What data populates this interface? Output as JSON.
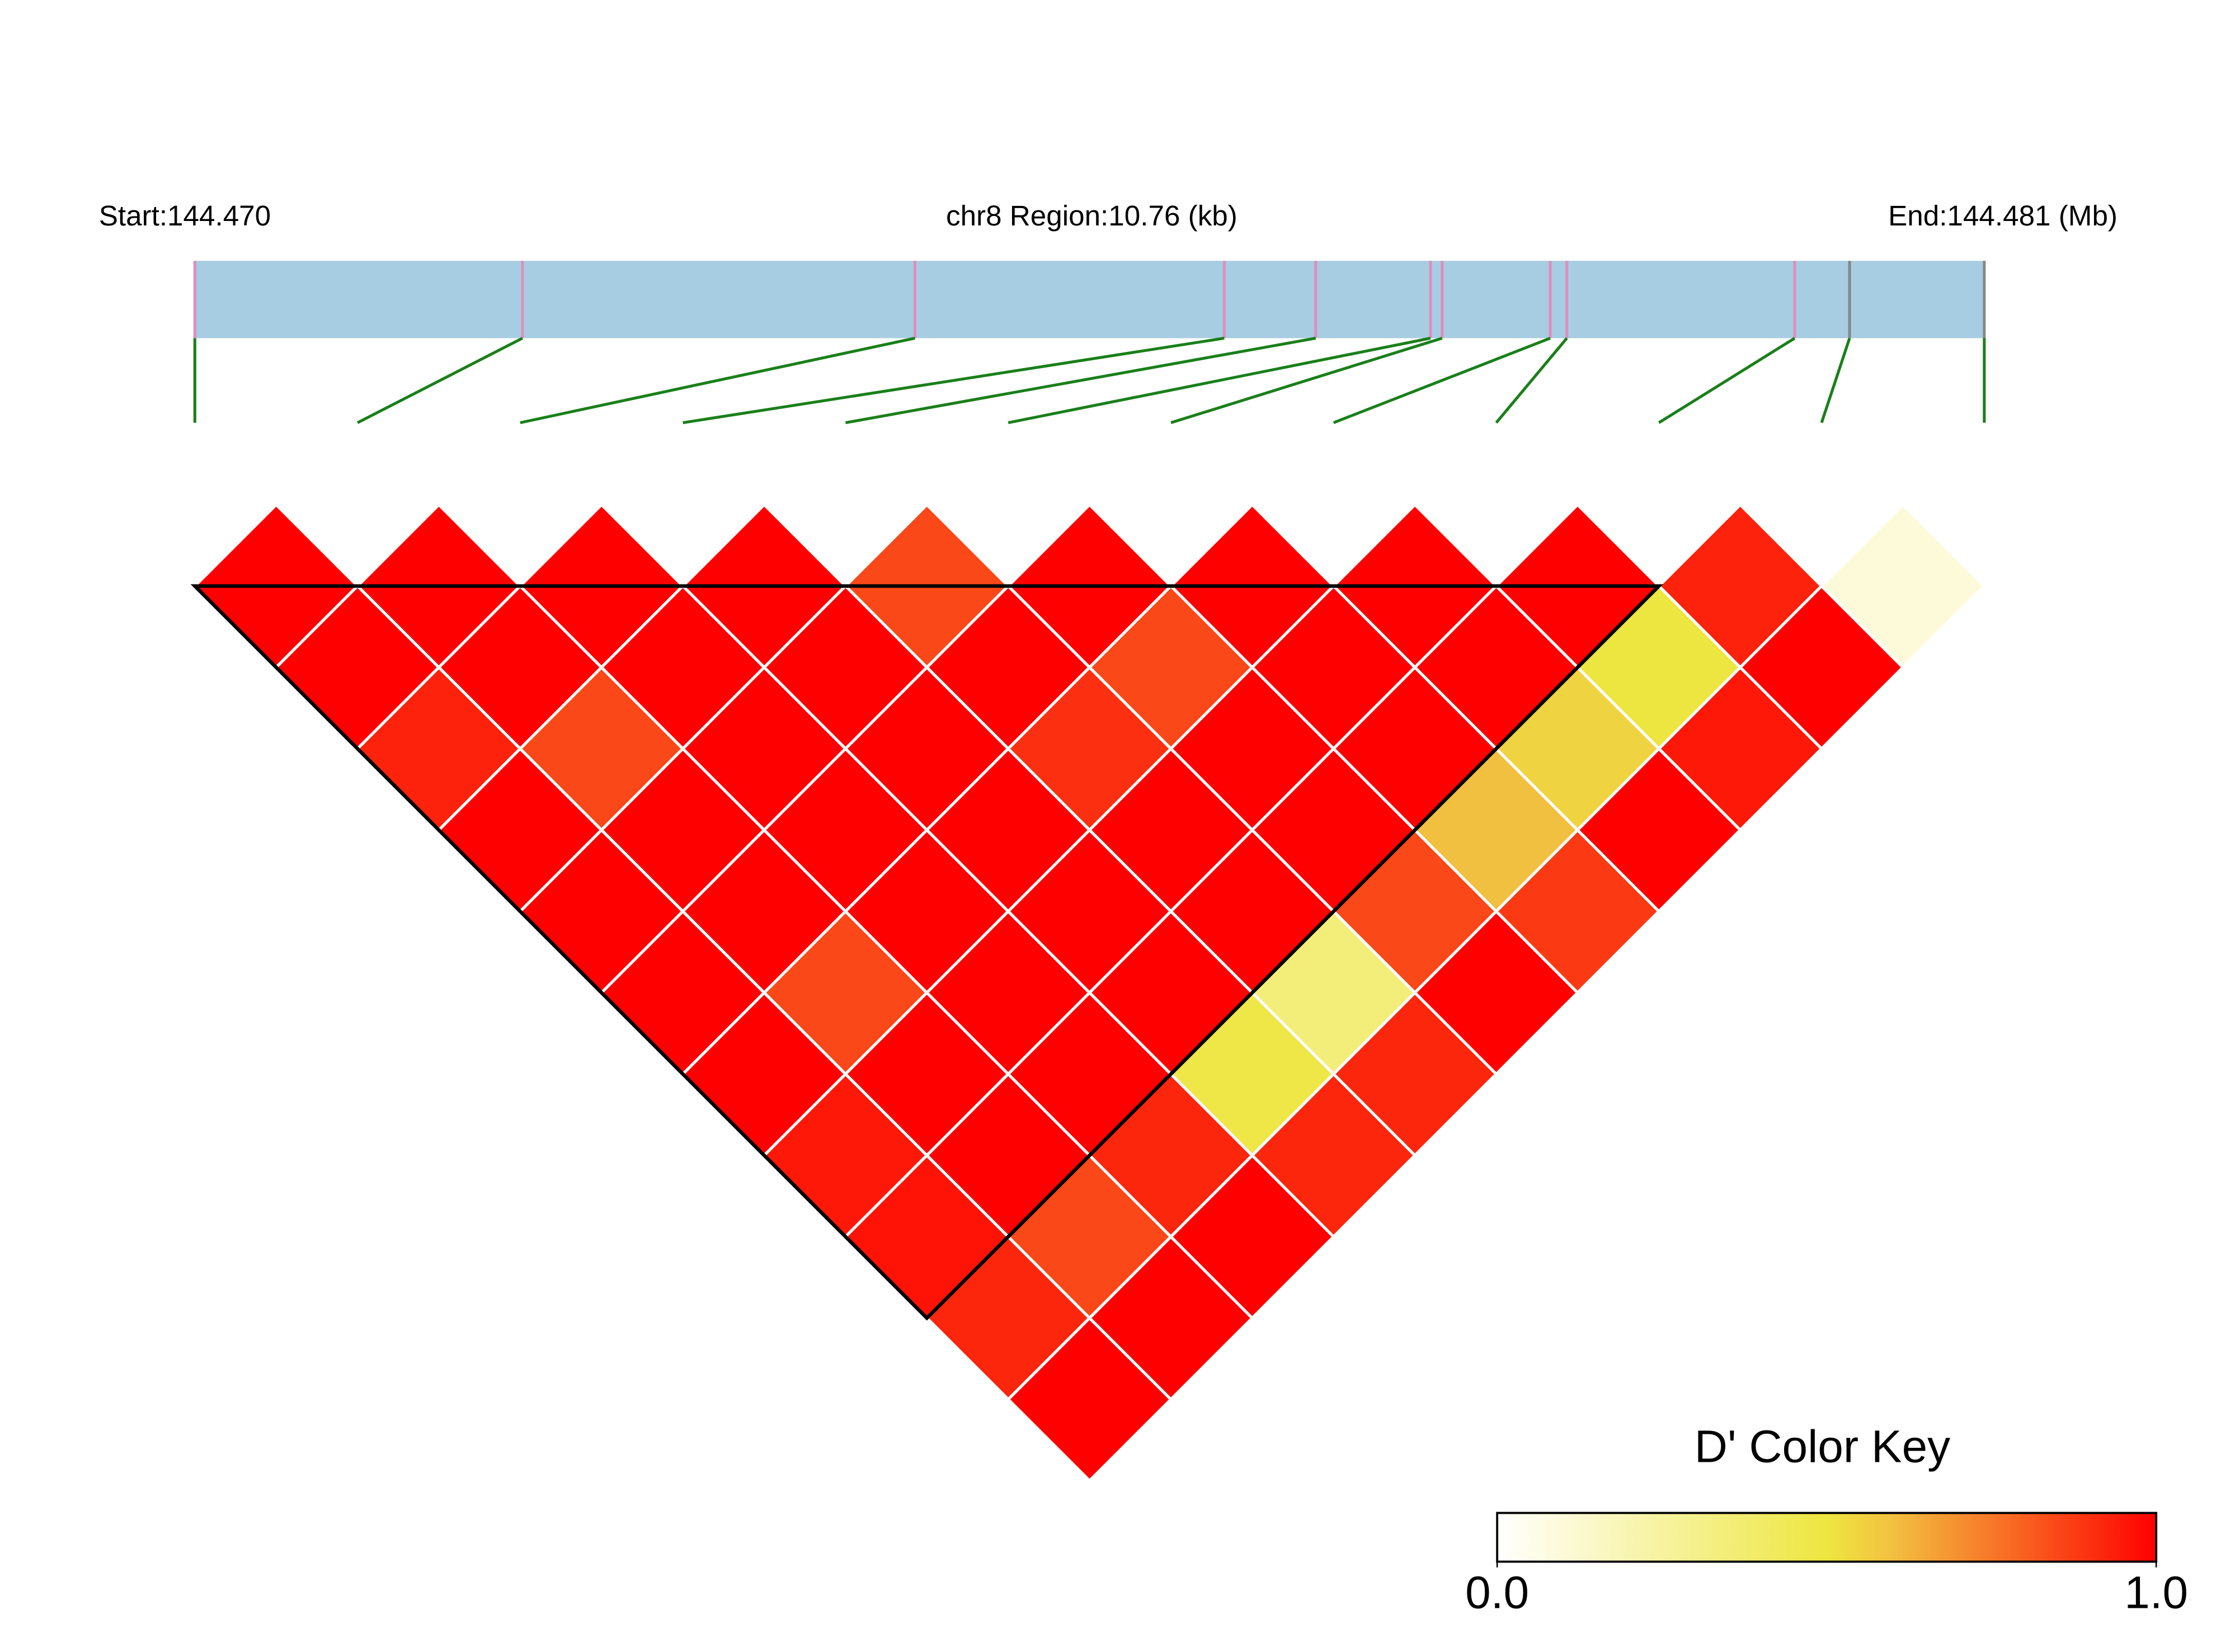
{
  "chart_data": {
    "type": "ld_heatmap",
    "start_label": "Start:144.470",
    "region_label": "chr8 Region:10.76 (kb)",
    "end_label": "End:144.481 (Mb)",
    "region_kb": 10.76,
    "snp_positions_kb": [
      0,
      1.97,
      4.33,
      6.19,
      6.74,
      7.43,
      7.5,
      8.15,
      8.25,
      9.62,
      9.95,
      10.76
    ],
    "marker_colors": [
      "#e08dbe",
      "#e08dbe",
      "#e08dbe",
      "#e08dbe",
      "#e08dbe",
      "#e08dbe",
      "#e08dbe",
      "#e08dbe",
      "#e08dbe",
      "#e08dbe",
      "#888888",
      "#888888"
    ],
    "values": [
      [
        1,
        1,
        0.93,
        1,
        1,
        1,
        1,
        0.95,
        0.96,
        0.92,
        1
      ],
      [
        1,
        1,
        0.85,
        1,
        1,
        0.85,
        1,
        1,
        0.85,
        1
      ],
      [
        1,
        1,
        1,
        1,
        1,
        1,
        1,
        0.92,
        1
      ],
      [
        1,
        1,
        1,
        1,
        1,
        1,
        0.48,
        0.92
      ],
      [
        0.85,
        1,
        0.9,
        1,
        1,
        0.35,
        0.92
      ],
      [
        1,
        0.85,
        1,
        1,
        0.85,
        1
      ],
      [
        1,
        1,
        1,
        0.6,
        0.88
      ],
      [
        1,
        1,
        0.55,
        1
      ],
      [
        1,
        0.5,
        0.95
      ],
      [
        0.93,
        1
      ],
      [
        0.1
      ]
    ],
    "blocks": [
      [
        0,
        9
      ]
    ],
    "color_key_title": "D' Color Key",
    "color_key_lim": [
      0,
      1
    ],
    "color_key_ticks": [
      {
        "value": 0,
        "label": "0.0"
      },
      {
        "value": 1,
        "label": "1.0"
      }
    ]
  }
}
